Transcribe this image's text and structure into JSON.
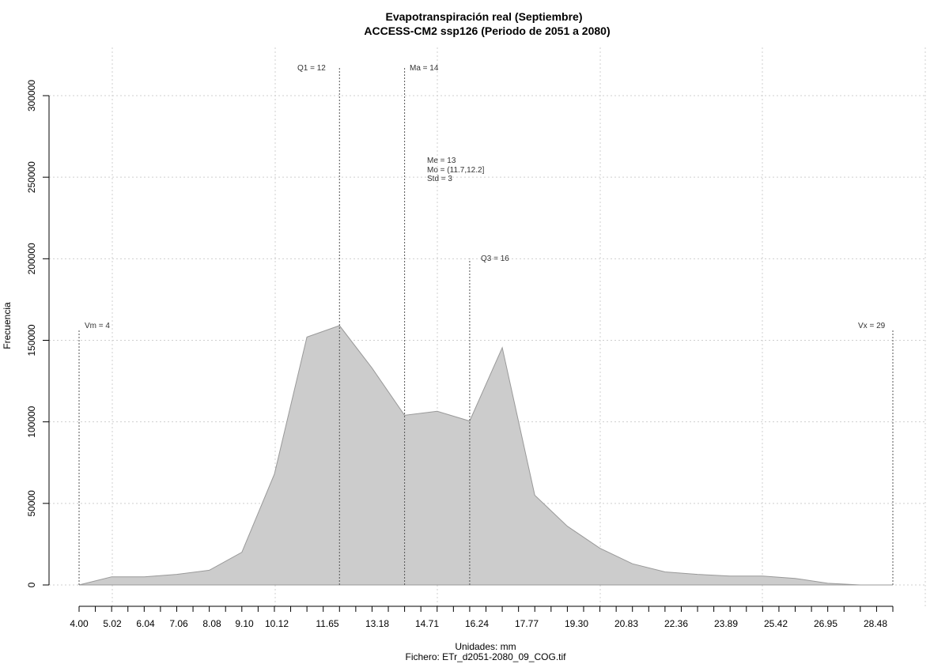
{
  "chart_data": {
    "type": "area",
    "title": "Evapotranspiración real (Septiembre)",
    "subtitle": "ACCESS-CM2 ssp126 (Periodo de 2051 a 2080)",
    "xlabel": "Unidades: mm",
    "ylabel": "Frecuencia",
    "file_label": "Fichero: ETr_d2051-2080_09_COG.tif",
    "x_tick_labels": [
      "4.00",
      "5.02",
      "6.04",
      "7.06",
      "8.08",
      "9.10",
      "10.12",
      "11.65",
      "13.18",
      "14.71",
      "16.24",
      "17.77",
      "19.30",
      "20.83",
      "22.36",
      "23.89",
      "25.42",
      "26.95",
      "28.48"
    ],
    "y_tick_labels": [
      "0",
      "50000",
      "100000",
      "150000",
      "200000",
      "250000",
      "300000"
    ],
    "xlim": [
      4.0,
      29.0
    ],
    "ylim": [
      0,
      300000
    ],
    "grid": true,
    "fill_color": "#cccccc",
    "line_color": "#999999",
    "x": [
      4.0,
      5.0,
      6.0,
      7.0,
      8.0,
      9.0,
      10.0,
      11.0,
      12.0,
      13.0,
      14.0,
      15.0,
      16.0,
      17.0,
      18.0,
      19.0,
      20.0,
      21.0,
      22.0,
      23.0,
      24.0,
      25.0,
      26.0,
      27.0,
      28.0,
      29.0
    ],
    "values": [
      0,
      5000,
      5000,
      6500,
      9000,
      20000,
      68000,
      152000,
      159000,
      133000,
      104000,
      106500,
      100500,
      145500,
      55000,
      36000,
      22500,
      13000,
      8000,
      6500,
      5500,
      5500,
      4000,
      1000,
      0,
      0
    ],
    "annotations": {
      "vm": {
        "label": "Vm = 4",
        "x": 4.0,
        "y": 157000
      },
      "q1": {
        "label": "Q1 = 12",
        "x": 12.0,
        "y": 317000
      },
      "ma": {
        "label": "Ma = 14",
        "x": 14.0,
        "y": 317000
      },
      "q3": {
        "label": "Q3 = 16",
        "x": 16.0,
        "y": 200000
      },
      "vx": {
        "label": "Vx = 29",
        "x": 29.0,
        "y": 157000
      },
      "stats": [
        "Me = 13",
        "Mo = (11.7,12.2]",
        "Std = 3"
      ]
    }
  }
}
